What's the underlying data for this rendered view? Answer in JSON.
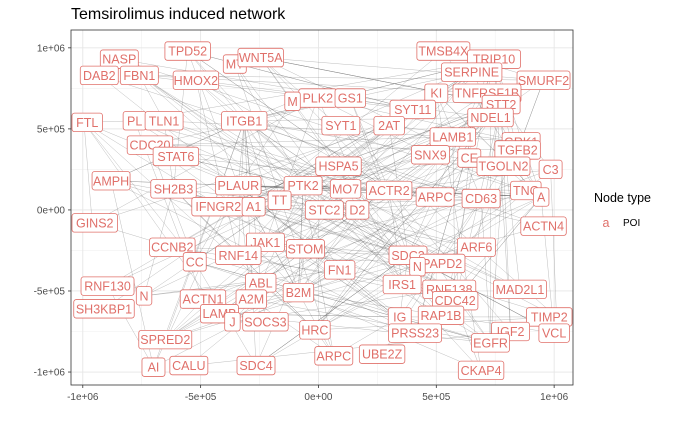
{
  "chart_data": {
    "type": "network-scatter",
    "title": "Temsirolimus induced network",
    "xlim": [
      -1050000,
      1080000
    ],
    "ylim": [
      -1080000,
      1110000
    ],
    "x_ticks": [
      {
        "value": -1000000,
        "label": "-1e+06"
      },
      {
        "value": -500000,
        "label": "-5e+05"
      },
      {
        "value": 0,
        "label": "0e+00"
      },
      {
        "value": 500000,
        "label": "5e+05"
      },
      {
        "value": 1000000,
        "label": "1e+06"
      }
    ],
    "y_ticks": [
      {
        "value": 1000000,
        "label": "1e+06"
      },
      {
        "value": 500000,
        "label": "5e+05"
      },
      {
        "value": 0,
        "label": "0e+00"
      },
      {
        "value": -500000,
        "label": "-5e+05"
      },
      {
        "value": -1000000,
        "label": "-1e+06"
      }
    ],
    "grid": true,
    "legend": {
      "title": "Node type",
      "entries": [
        {
          "key": "a",
          "label": "POI",
          "color": "#e0706a"
        }
      ],
      "position": "right"
    },
    "node_color": "#e0706a",
    "edge_color": "#555555",
    "nodes": [
      {
        "label": "TPD52",
        "x": -555000,
        "y": 980000
      },
      {
        "label": "NASP",
        "x": -845000,
        "y": 930000
      },
      {
        "label": "MT",
        "x": -355000,
        "y": 900000
      },
      {
        "label": "WNT5A",
        "x": -245000,
        "y": 940000
      },
      {
        "label": "DAB2",
        "x": -930000,
        "y": 830000
      },
      {
        "label": "FBN1",
        "x": -760000,
        "y": 830000
      },
      {
        "label": "HMOX2",
        "x": -520000,
        "y": 800000
      },
      {
        "label": "TMSB4X",
        "x": 530000,
        "y": 980000
      },
      {
        "label": "TRIP10",
        "x": 745000,
        "y": 930000
      },
      {
        "label": "SERPINE",
        "x": 650000,
        "y": 850000
      },
      {
        "label": "SMURF2",
        "x": 955000,
        "y": 800000
      },
      {
        "label": "TNFRSF1B",
        "x": 715000,
        "y": 720000
      },
      {
        "label": "STT2",
        "x": 775000,
        "y": 650000
      },
      {
        "label": "KI",
        "x": 500000,
        "y": 720000
      },
      {
        "label": "PLK2",
        "x": -3000,
        "y": 690000
      },
      {
        "label": "M",
        "x": -110000,
        "y": 670000
      },
      {
        "label": "GS1",
        "x": 135000,
        "y": 690000
      },
      {
        "label": "SYT11",
        "x": 400000,
        "y": 620000
      },
      {
        "label": "NDEL1",
        "x": 730000,
        "y": 570000
      },
      {
        "label": "FTL",
        "x": -995000,
        "y": 540000
      },
      {
        "label": "PL",
        "x": -780000,
        "y": 550000
      },
      {
        "label": "TLN1",
        "x": -655000,
        "y": 550000
      },
      {
        "label": "ITGB1",
        "x": -315000,
        "y": 550000
      },
      {
        "label": "2AT",
        "x": 300000,
        "y": 520000
      },
      {
        "label": "SYT1",
        "x": 95000,
        "y": 520000
      },
      {
        "label": "LAMB1",
        "x": 570000,
        "y": 450000
      },
      {
        "label": "GRK1",
        "x": 860000,
        "y": 420000
      },
      {
        "label": "CDC20",
        "x": -715000,
        "y": 400000
      },
      {
        "label": "TGFB2",
        "x": 845000,
        "y": 370000
      },
      {
        "label": "SNX9",
        "x": 475000,
        "y": 340000
      },
      {
        "label": "CE",
        "x": 640000,
        "y": 320000
      },
      {
        "label": "STAT6",
        "x": -605000,
        "y": 330000
      },
      {
        "label": "HSPA5",
        "x": 85000,
        "y": 270000
      },
      {
        "label": "TGOLN2",
        "x": 785000,
        "y": 270000
      },
      {
        "label": "C3",
        "x": 985000,
        "y": 250000
      },
      {
        "label": "AMPH",
        "x": -880000,
        "y": 180000
      },
      {
        "label": "SH2B3",
        "x": -615000,
        "y": 130000
      },
      {
        "label": "PLAUR",
        "x": -340000,
        "y": 150000
      },
      {
        "label": "PTK2",
        "x": -65000,
        "y": 150000
      },
      {
        "label": "MO7",
        "x": 115000,
        "y": 130000
      },
      {
        "label": "ACTR2",
        "x": 300000,
        "y": 120000
      },
      {
        "label": "ARPC",
        "x": 495000,
        "y": 80000
      },
      {
        "label": "TNC",
        "x": 880000,
        "y": 120000
      },
      {
        "label": "CD63",
        "x": 690000,
        "y": 70000
      },
      {
        "label": "A",
        "x": 945000,
        "y": 80000
      },
      {
        "label": "TT",
        "x": -165000,
        "y": 60000
      },
      {
        "label": "IFNGR2",
        "x": -425000,
        "y": 20000
      },
      {
        "label": "A1",
        "x": -275000,
        "y": 20000
      },
      {
        "label": "STC2",
        "x": 25000,
        "y": 0
      },
      {
        "label": "D2",
        "x": 165000,
        "y": 0
      },
      {
        "label": "GINS2",
        "x": -960000,
        "y": -80000
      },
      {
        "label": "ACTN4",
        "x": 955000,
        "y": -100000
      },
      {
        "label": "CCNB2",
        "x": -620000,
        "y": -230000
      },
      {
        "label": "JAK1",
        "x": -225000,
        "y": -200000
      },
      {
        "label": "CC",
        "x": -525000,
        "y": -320000
      },
      {
        "label": "RNF14",
        "x": -340000,
        "y": -280000
      },
      {
        "label": "STOM",
        "x": -55000,
        "y": -240000
      },
      {
        "label": "ARF6",
        "x": 670000,
        "y": -230000
      },
      {
        "label": "SDC2",
        "x": 380000,
        "y": -280000
      },
      {
        "label": "PAPD2",
        "x": 525000,
        "y": -330000
      },
      {
        "label": "N",
        "x": 420000,
        "y": -350000
      },
      {
        "label": "ABL",
        "x": -245000,
        "y": -450000
      },
      {
        "label": "FN1",
        "x": 90000,
        "y": -370000
      },
      {
        "label": "RNF130",
        "x": -895000,
        "y": -470000
      },
      {
        "label": "N_2",
        "x": -740000,
        "y": -530000
      },
      {
        "label": "B2M",
        "x": -85000,
        "y": -510000
      },
      {
        "label": "IRS1",
        "x": 355000,
        "y": -460000
      },
      {
        "label": "RNF138",
        "x": 555000,
        "y": -490000
      },
      {
        "label": "MAD2L1",
        "x": 855000,
        "y": -490000
      },
      {
        "label": "CDC42",
        "x": 580000,
        "y": -560000
      },
      {
        "label": "ACTN1",
        "x": -490000,
        "y": -550000
      },
      {
        "label": "A2M",
        "x": -285000,
        "y": -550000
      },
      {
        "label": "SH3KBP1",
        "x": -910000,
        "y": -610000
      },
      {
        "label": "LAMB",
        "x": -420000,
        "y": -640000
      },
      {
        "label": "J",
        "x": -365000,
        "y": -690000
      },
      {
        "label": "SOCS3",
        "x": -225000,
        "y": -690000
      },
      {
        "label": "RAP1B",
        "x": 520000,
        "y": -650000
      },
      {
        "label": "IG",
        "x": 345000,
        "y": -660000
      },
      {
        "label": "TIMP2",
        "x": 1010000,
        "y": -660000
      },
      {
        "label": "HRC",
        "x": -15000,
        "y": -740000
      },
      {
        "label": "PRSS23",
        "x": 410000,
        "y": -760000
      },
      {
        "label": "IGF2",
        "x": 815000,
        "y": -750000
      },
      {
        "label": "VCL",
        "x": 1000000,
        "y": -760000
      },
      {
        "label": "SPRED2",
        "x": -650000,
        "y": -800000
      },
      {
        "label": "EGFR",
        "x": 730000,
        "y": -820000
      },
      {
        "label": "ARPC",
        "x": 65000,
        "y": -900000
      },
      {
        "label": "UBE2Z",
        "x": 270000,
        "y": -890000
      },
      {
        "label": "AI",
        "x": -700000,
        "y": -970000
      },
      {
        "label": "CALU",
        "x": -550000,
        "y": -960000
      },
      {
        "label": "SDC4",
        "x": -265000,
        "y": -960000
      },
      {
        "label": "CKAP4",
        "x": 690000,
        "y": -990000
      }
    ]
  }
}
